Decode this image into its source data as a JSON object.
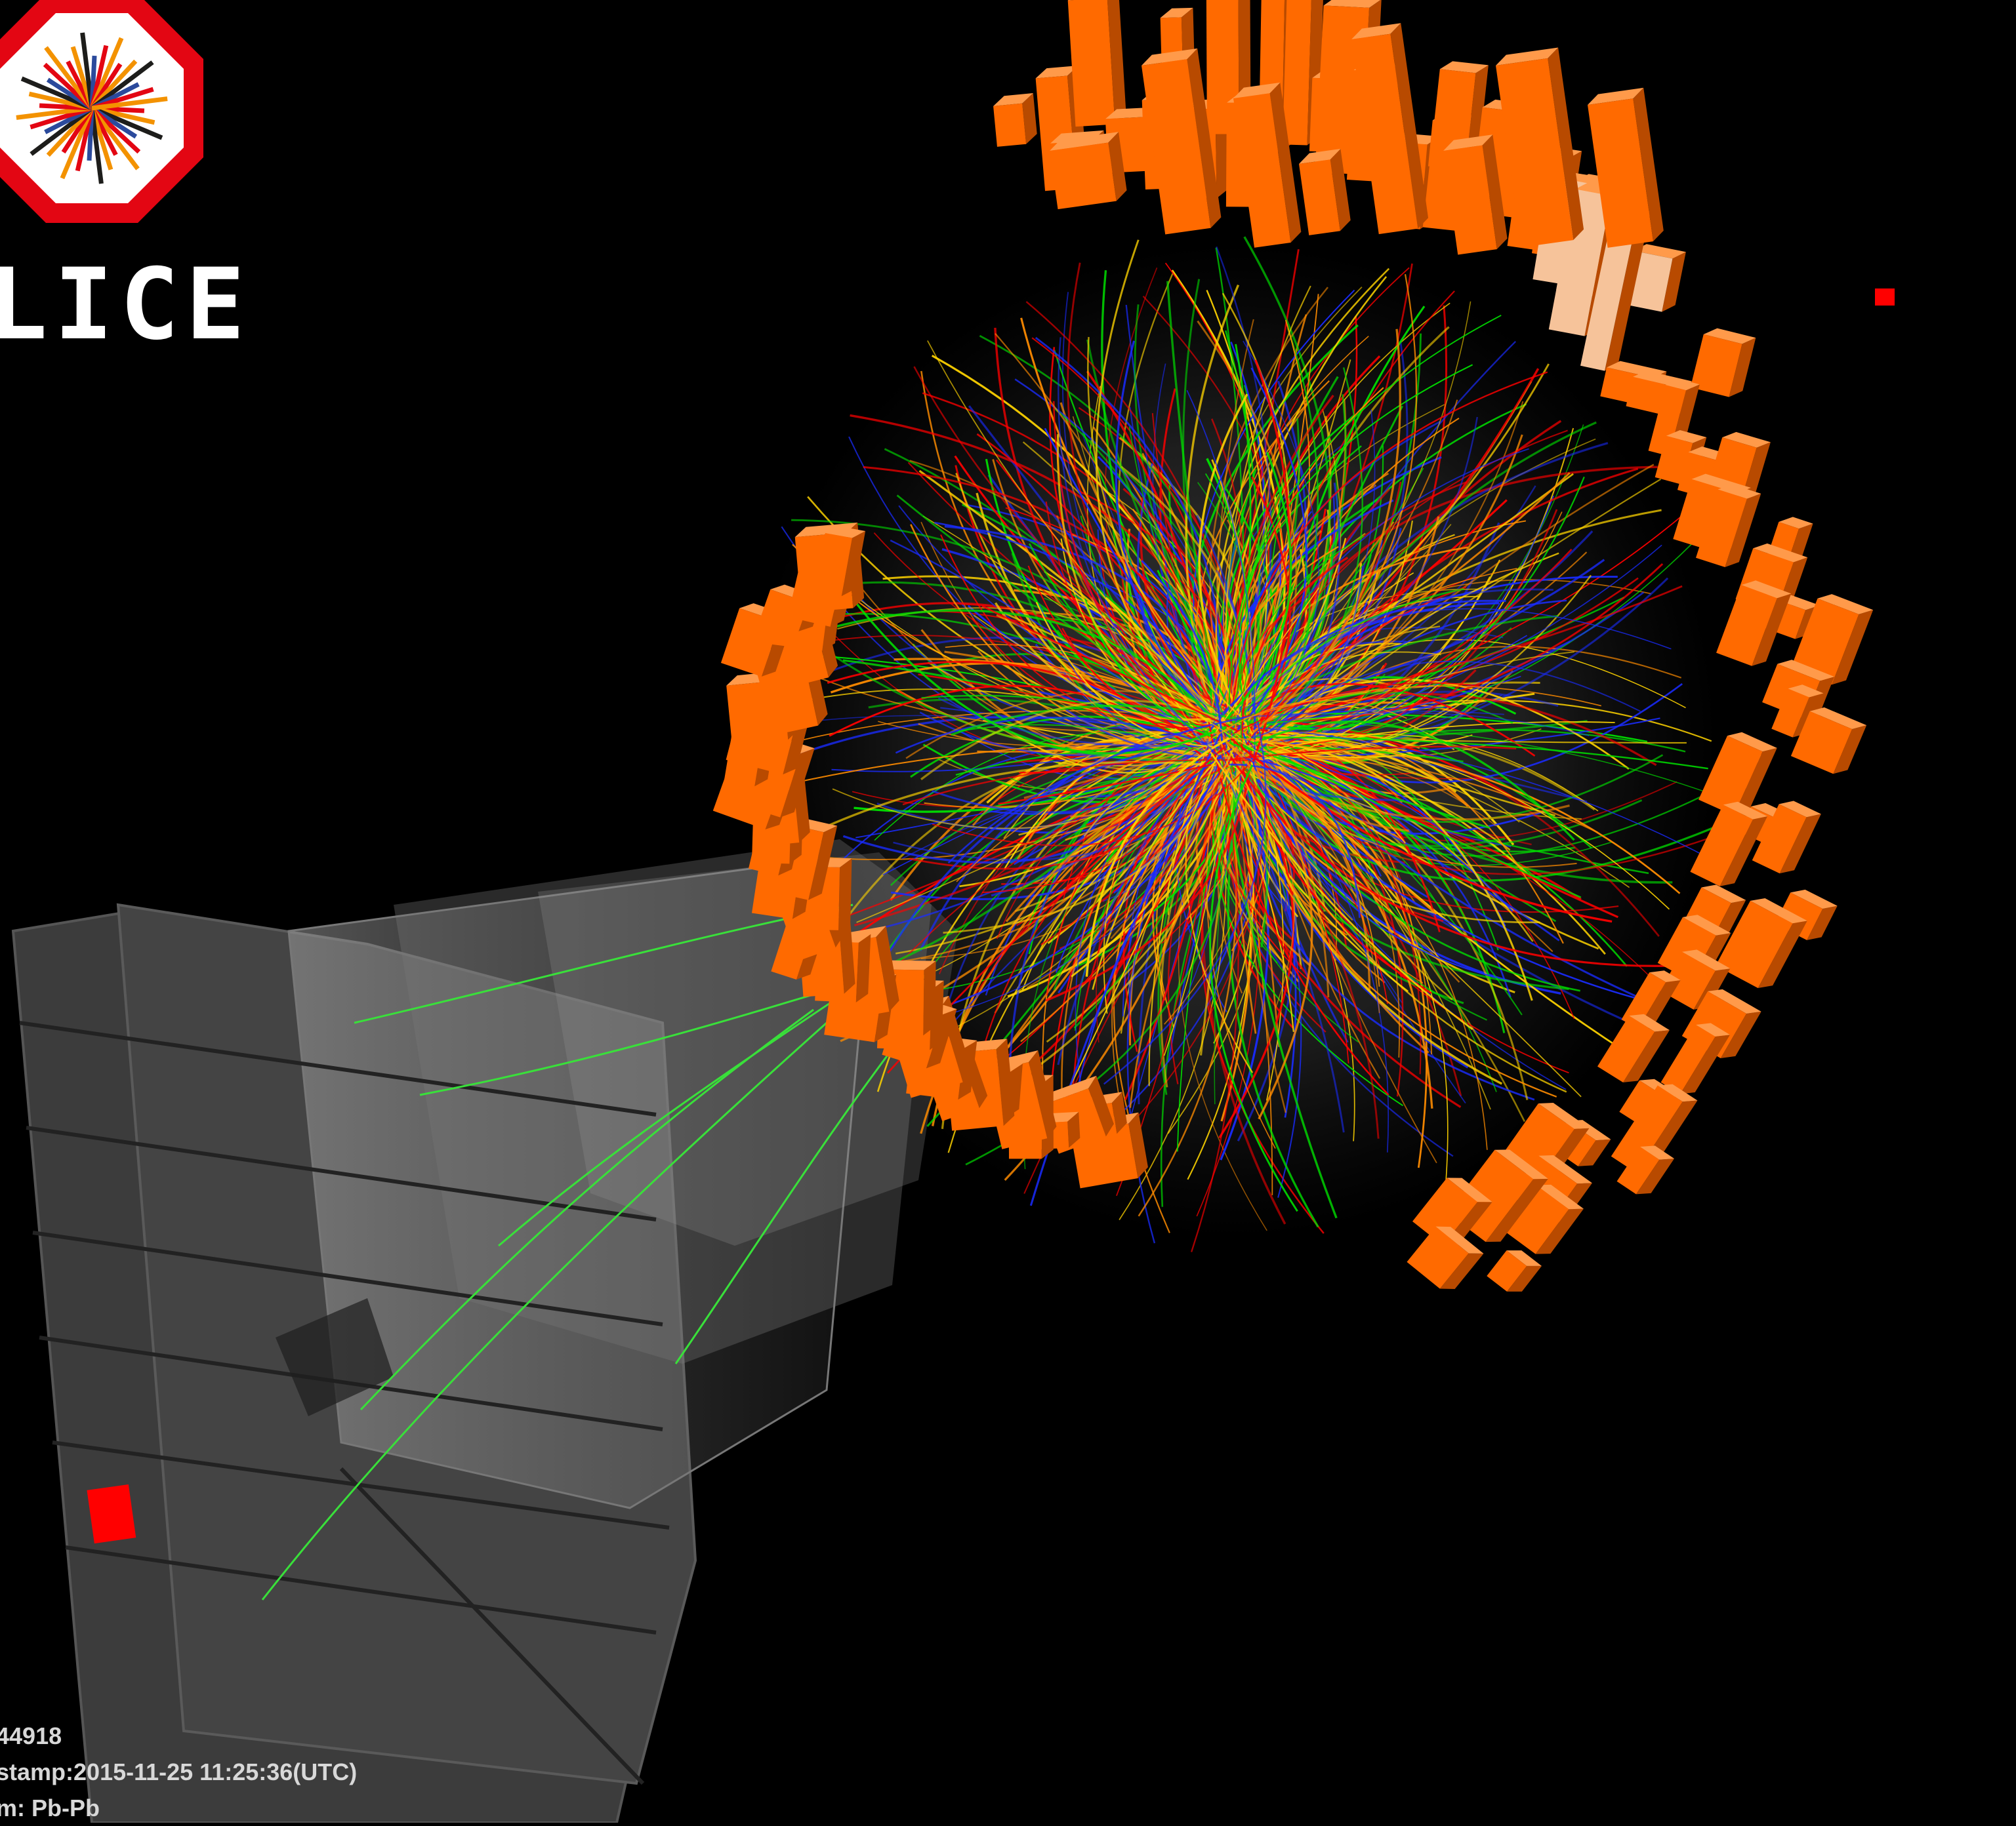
{
  "logo": {
    "text": "LICE"
  },
  "event_info": {
    "run": "44918",
    "timestamp": "stamp:2015-11-25 11:25:36(UTC)",
    "system": "m: Pb-Pb"
  },
  "colors": {
    "background": "#000000",
    "calorimeter": "#ff6a00",
    "calorimeter_light": "#f6c39a",
    "tracks": [
      "#ff0000",
      "#00e000",
      "#ffd400",
      "#1a2cff",
      "#ff8c00"
    ],
    "muon_panels": "#4a4a4a",
    "logo_red": "#e30613"
  }
}
